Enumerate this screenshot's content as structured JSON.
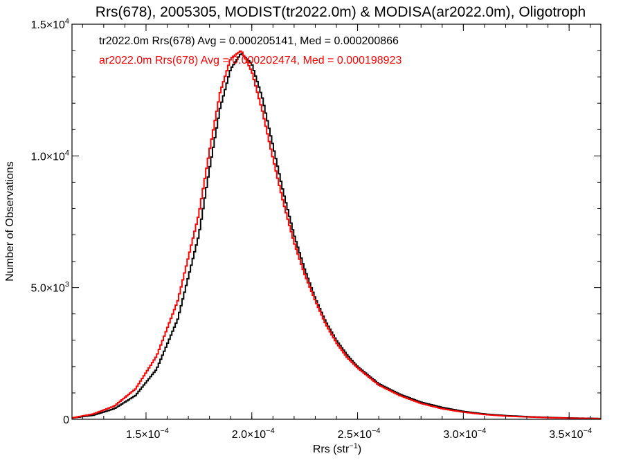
{
  "chart_data": {
    "type": "line",
    "title": "Rrs(678), 2005305, MODIST(tr2022.0m) & MODISA(ar2022.0m), Oligotroph",
    "xlabel_main": "Rrs (str",
    "xlabel_sup": "−1",
    "xlabel_close": ")",
    "ylabel": "Number of Observations",
    "xlim": [
      0.000115,
      0.000365
    ],
    "ylim": [
      0,
      15000
    ],
    "xticks": [
      {
        "value": 0.00015,
        "mant": "1.5×10",
        "exp": "−4"
      },
      {
        "value": 0.0002,
        "mant": "2.0×10",
        "exp": "−4"
      },
      {
        "value": 0.00025,
        "mant": "2.5×10",
        "exp": "−4"
      },
      {
        "value": 0.0003,
        "mant": "3.0×10",
        "exp": "−4"
      },
      {
        "value": 0.00035,
        "mant": "3.5×10",
        "exp": "−4"
      }
    ],
    "yticks": [
      {
        "value": 0,
        "mant": "0",
        "exp": ""
      },
      {
        "value": 5000,
        "mant": "5.0×10",
        "exp": "3"
      },
      {
        "value": 10000,
        "mant": "1.0×10",
        "exp": "4"
      },
      {
        "value": 15000,
        "mant": "1.5×10",
        "exp": "4"
      }
    ],
    "x": [
      0.000115,
      0.000125,
      0.000135,
      0.000145,
      0.000155,
      0.000165,
      0.000175,
      0.00018,
      0.000185,
      0.00019,
      0.000195,
      0.0002,
      0.000205,
      0.00021,
      0.000215,
      0.00022,
      0.000225,
      0.00023,
      0.000235,
      0.00024,
      0.000245,
      0.00025,
      0.00026,
      0.00027,
      0.00028,
      0.00029,
      0.0003,
      0.00031,
      0.00032,
      0.00033,
      0.00034,
      0.00035,
      0.000365
    ],
    "series": [
      {
        "name": "tr2022.0m",
        "color": "#000000",
        "values": [
          50,
          150,
          400,
          900,
          1900,
          3800,
          7000,
          9500,
          11800,
          13300,
          13900,
          13500,
          12200,
          10400,
          8600,
          7000,
          5700,
          4600,
          3700,
          3000,
          2450,
          2000,
          1350,
          950,
          650,
          450,
          300,
          200,
          140,
          100,
          70,
          50,
          30
        ]
      },
      {
        "name": "ar2022.0m",
        "color": "#ff0000",
        "values": [
          50,
          200,
          500,
          1150,
          2400,
          4500,
          7800,
          10200,
          12400,
          13700,
          14000,
          13200,
          11700,
          9900,
          8200,
          6700,
          5500,
          4500,
          3600,
          2900,
          2350,
          1950,
          1300,
          900,
          600,
          400,
          270,
          180,
          120,
          90,
          60,
          45,
          25
        ]
      }
    ],
    "legend": [
      {
        "text": "tr2022.0m Rrs(678) Avg = 0.000205141, Med = 0.000200866",
        "color": "#000000"
      },
      {
        "text": "ar2022.0m Rrs(678) Avg = 0.000202474, Med = 0.000198923",
        "color": "#ff0000"
      }
    ]
  }
}
